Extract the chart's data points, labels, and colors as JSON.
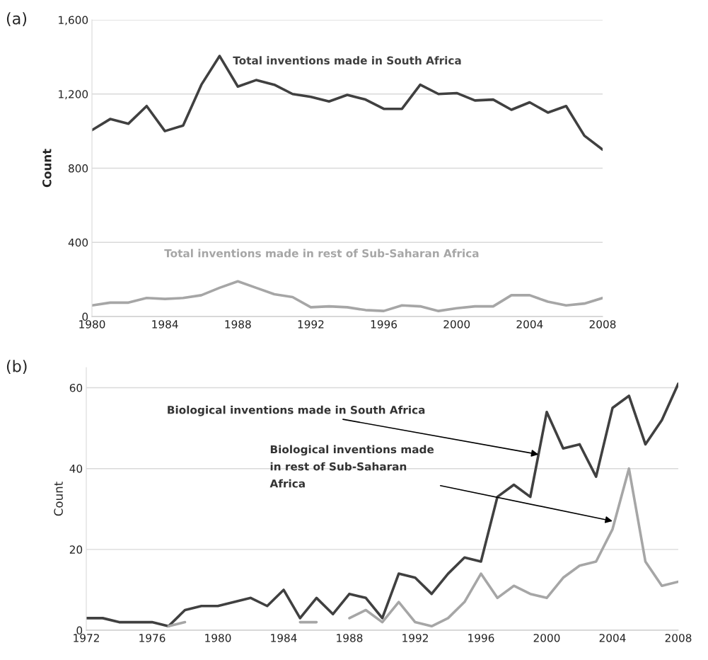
{
  "chart_data": [
    {
      "type": "line",
      "title": "(a)",
      "ylabel": "Count",
      "x": [
        1980,
        1981,
        1982,
        1983,
        1984,
        1985,
        1986,
        1987,
        1988,
        1989,
        1990,
        1991,
        1992,
        1993,
        1994,
        1995,
        1996,
        1997,
        1998,
        1999,
        2000,
        2001,
        2002,
        2003,
        2004,
        2005,
        2006,
        2007,
        2008
      ],
      "series": [
        {
          "name": "Total inventions made in South Africa",
          "color": "#404040",
          "values": [
            1005,
            1065,
            1040,
            1135,
            1000,
            1030,
            1250,
            1405,
            1240,
            1275,
            1250,
            1200,
            1185,
            1160,
            1195,
            1170,
            1120,
            1120,
            1250,
            1200,
            1205,
            1165,
            1170,
            1115,
            1155,
            1100,
            1135,
            975,
            900
          ]
        },
        {
          "name": "Total inventions made in rest of Sub-Saharan Africa",
          "color": "#a6a6a6",
          "values": [
            60,
            75,
            75,
            100,
            95,
            100,
            115,
            155,
            190,
            155,
            120,
            105,
            50,
            55,
            50,
            35,
            30,
            60,
            55,
            30,
            45,
            55,
            55,
            115,
            115,
            80,
            60,
            70,
            100
          ]
        }
      ],
      "xlim": [
        1980,
        2008
      ],
      "xticks": [
        1980,
        1984,
        1988,
        1992,
        1996,
        2000,
        2004,
        2008
      ],
      "ylim": [
        0,
        1600
      ],
      "yticks": [
        0,
        400,
        800,
        {
          "value": 1200,
          "label": "1,200"
        },
        {
          "value": 1600,
          "label": "1,600"
        }
      ],
      "grid": "y",
      "legend": false
    },
    {
      "type": "line",
      "title": "(b)",
      "ylabel": "Count",
      "x": [
        1972,
        1973,
        1974,
        1975,
        1976,
        1977,
        1978,
        1979,
        1980,
        1981,
        1982,
        1983,
        1984,
        1985,
        1986,
        1987,
        1988,
        1989,
        1990,
        1991,
        1992,
        1993,
        1994,
        1995,
        1996,
        1997,
        1998,
        1999,
        2000,
        2001,
        2002,
        2003,
        2004,
        2005,
        2006,
        2007,
        2008
      ],
      "series": [
        {
          "color": "#404040",
          "values": [
            3,
            3,
            2,
            2,
            2,
            1,
            5,
            6,
            6,
            7,
            8,
            6,
            10,
            3,
            8,
            4,
            9,
            8,
            3,
            14,
            13,
            9,
            14,
            18,
            17,
            33,
            36,
            33,
            54,
            45,
            46,
            38,
            55,
            58,
            46,
            52,
            61
          ]
        },
        {
          "color": "#a6a6a6",
          "values": [
            null,
            null,
            null,
            null,
            null,
            1,
            2,
            null,
            null,
            null,
            null,
            null,
            null,
            2,
            2,
            null,
            3,
            5,
            2,
            7,
            2,
            1,
            3,
            7,
            14,
            8,
            11,
            9,
            8,
            13,
            16,
            17,
            25,
            40,
            17,
            11,
            12
          ]
        }
      ],
      "annotations": [
        {
          "text": "Biological inventions made in South Africa",
          "x": 1999.5,
          "y": 43.5
        },
        {
          "text": "Biological inventions made\nin rest of Sub-Saharan\nAfrica",
          "x": 2004,
          "y": 27
        }
      ],
      "xlim": [
        1972,
        2008
      ],
      "xticks": [
        1972,
        1976,
        1980,
        1984,
        1988,
        1992,
        1996,
        2000,
        2004,
        2008
      ],
      "ylim": [
        0,
        65
      ],
      "yticks": [
        0,
        20,
        40,
        60
      ],
      "grid": "y",
      "legend": false
    }
  ]
}
